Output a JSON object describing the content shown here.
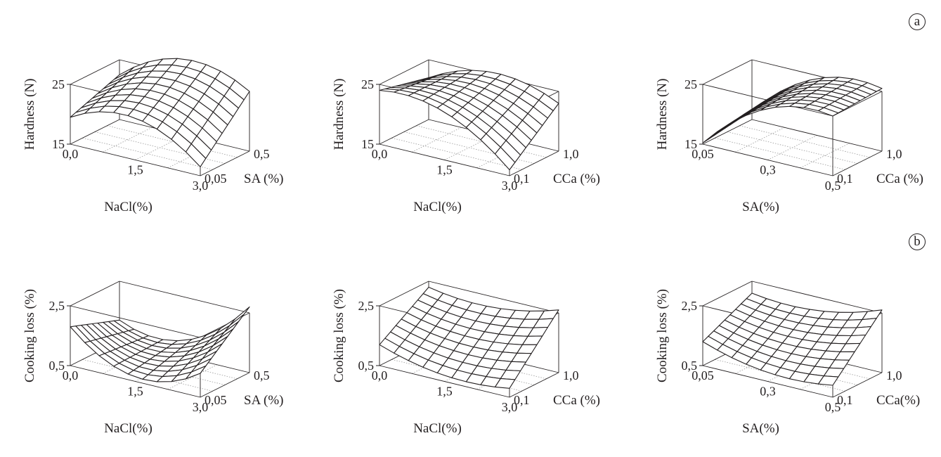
{
  "labels": {
    "a": "a",
    "b": "b"
  },
  "chart_data": [
    {
      "type": "surface",
      "row": "a",
      "zlabel": "Hardness (N)",
      "zticks": [
        "15",
        "25"
      ],
      "zlim": [
        15,
        25
      ],
      "xlabel": "NaCl(%)",
      "xticks": [
        "0,0",
        "1,5",
        "3,0"
      ],
      "ylabel": "SA (%)",
      "yticks": [
        "0,05",
        "0,5"
      ],
      "corner_values": {
        "x0_y0": 19.5,
        "x1_y0": 16.5,
        "x0_y1": 22.5,
        "x1_y1": 25
      },
      "curvature": 4.0
    },
    {
      "type": "surface",
      "row": "a",
      "zlabel": "Hardness (N)",
      "zticks": [
        "15",
        "25"
      ],
      "zlim": [
        15,
        25
      ],
      "xlabel": "NaCl(%)",
      "xticks": [
        "0,0",
        "1,5",
        "3,0"
      ],
      "ylabel": "CCa (%)",
      "yticks": [
        "0,1",
        "1,0"
      ],
      "corner_values": {
        "x0_y0": 24,
        "x1_y0": 16,
        "x0_y1": 22,
        "x1_y1": 23
      },
      "curvature": 3.0
    },
    {
      "type": "surface",
      "row": "a",
      "zlabel": "Hardness (N)",
      "zticks": [
        "15",
        "25"
      ],
      "zlim": [
        15,
        25
      ],
      "xlabel": "SA(%)",
      "xticks": [
        "0,05",
        "0,3",
        "0,5"
      ],
      "ylabel": "CCa (%)",
      "yticks": [
        "0,1",
        "1,0"
      ],
      "corner_values": {
        "x0_y0": 15.2,
        "x1_y0": 25,
        "x0_y1": 16.5,
        "x1_y1": 25.5
      },
      "curvature": 3.5
    },
    {
      "type": "surface",
      "row": "b",
      "zlabel": "Cooking loss (%)",
      "zticks": [
        "0,5",
        "2,5"
      ],
      "zlim": [
        0.5,
        2.5
      ],
      "xlabel": "NaCl(%)",
      "xticks": [
        "0,0",
        "1,5",
        "3,0"
      ],
      "ylabel": "SA (%)",
      "yticks": [
        "0,05",
        "0,5"
      ],
      "corner_values": {
        "x0_y0": 1.8,
        "x1_y0": 1.3,
        "x0_y1": 1.2,
        "x1_y1": 2.7
      },
      "curvature": -0.9
    },
    {
      "type": "surface",
      "row": "b",
      "zlabel": "Cooking loss (%)",
      "zticks": [
        "0,5",
        "2,5"
      ],
      "zlim": [
        0.5,
        2.5
      ],
      "xlabel": "NaCl(%)",
      "xticks": [
        "0,0",
        "1,5",
        "3,0"
      ],
      "ylabel": "CCa (%)",
      "yticks": [
        "0,1",
        "1,0"
      ],
      "corner_values": {
        "x0_y0": 1.2,
        "x1_y0": 0.8,
        "x0_y1": 2.3,
        "x1_y1": 2.6
      },
      "curvature": -0.3
    },
    {
      "type": "surface",
      "row": "b",
      "zlabel": "Cooking loss (%)",
      "zticks": [
        "0,5",
        "2,5"
      ],
      "zlim": [
        0.5,
        2.5
      ],
      "xlabel": "SA(%)",
      "xticks": [
        "0,05",
        "0,3",
        "0,5"
      ],
      "ylabel": "CCa(%)",
      "yticks": [
        "0,1",
        "1,0"
      ],
      "corner_values": {
        "x0_y0": 1.3,
        "x1_y0": 0.9,
        "x0_y1": 2.1,
        "x1_y1": 2.6
      },
      "curvature": -0.3
    }
  ]
}
